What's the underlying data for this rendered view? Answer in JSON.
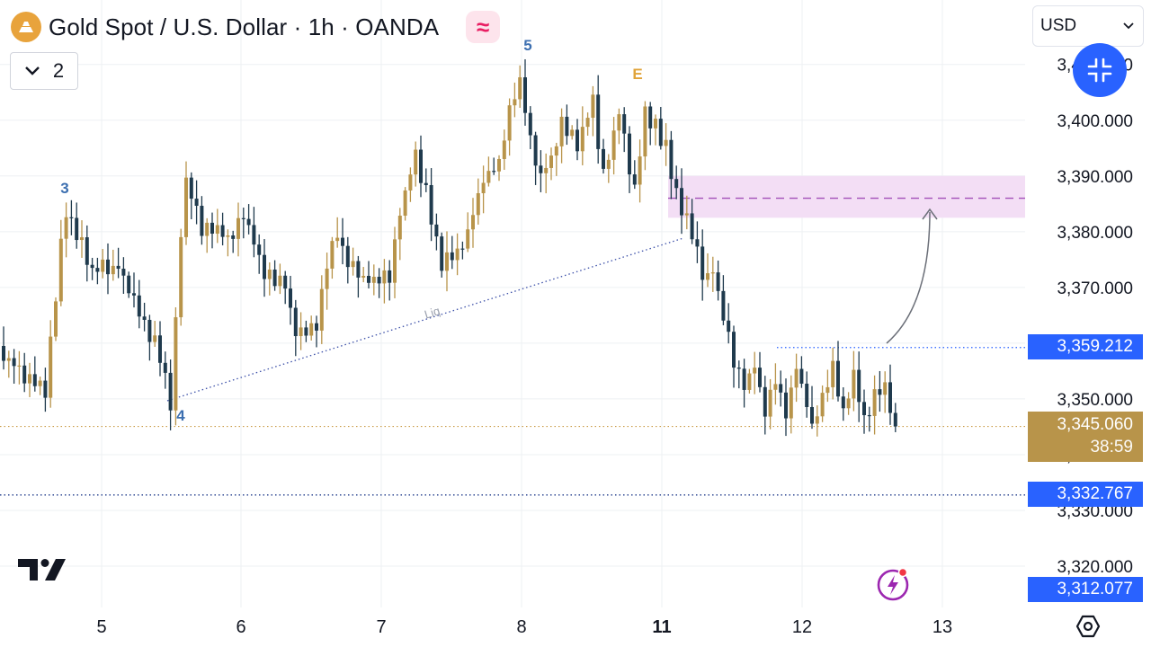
{
  "header": {
    "title": "Gold Spot / U.S. Dollar · 1h · OANDA",
    "indicator_glyph": "≈",
    "collapse_count": "2",
    "currency": "USD"
  },
  "colors": {
    "bull": "#b8944a",
    "bear": "#1f3a4d",
    "accent_blue": "#2962ff",
    "zone": "#f3def5",
    "zone_line": "#a24fb8",
    "wave_label": "#3c6fb0",
    "wave_e": "#e0a43a"
  },
  "icons": [
    "gold-logo-icon",
    "chevron-down-icon",
    "collapse-arrows-icon",
    "tradingview-logo-icon",
    "lightning-icon",
    "settings-hexagon-icon"
  ],
  "chart_data": {
    "type": "candlestick",
    "symbol": "XAUUSD",
    "timeframe": "1h",
    "x_ticks": [
      "5",
      "6",
      "7",
      "8",
      "11",
      "12",
      "13"
    ],
    "y_ticks": [
      "3,320.000",
      "3,330.000",
      "3,340.000",
      "3,350.000",
      "3,360.000",
      "3,370.000",
      "3,380.000",
      "3,390.000",
      "3,400.000",
      "3,410.000"
    ],
    "ylim": [
      3308,
      3420
    ],
    "price_labels": {
      "last_price": "3,345.060",
      "countdown": "38:59",
      "level_high": "3,359.212",
      "level_low": "3,332.767",
      "level_bottom": "3,312.077"
    },
    "wave_labels": [
      "3",
      "4",
      "5",
      "E"
    ],
    "trendline_label": "Liq",
    "zone": {
      "from": 3382.5,
      "to": 3390.0,
      "mid": 3386.0
    },
    "candle_waypoints": [
      [
        0,
        3358
      ],
      [
        8,
        3351
      ],
      [
        11,
        3378
      ],
      [
        12,
        3384
      ],
      [
        17,
        3373
      ],
      [
        22,
        3374
      ],
      [
        24,
        3370
      ],
      [
        30,
        3358
      ],
      [
        32,
        3349
      ],
      [
        34,
        3380
      ],
      [
        35,
        3389
      ],
      [
        38,
        3380
      ],
      [
        44,
        3379
      ],
      [
        46,
        3383
      ],
      [
        50,
        3373
      ],
      [
        54,
        3370
      ],
      [
        56,
        3362
      ],
      [
        60,
        3364
      ],
      [
        62,
        3375
      ],
      [
        64,
        3379
      ],
      [
        67,
        3373
      ],
      [
        70,
        3371
      ],
      [
        74,
        3372
      ],
      [
        76,
        3383
      ],
      [
        79,
        3394
      ],
      [
        82,
        3383
      ],
      [
        84,
        3374
      ],
      [
        86,
        3375
      ],
      [
        89,
        3380
      ],
      [
        92,
        3389
      ],
      [
        95,
        3393
      ],
      [
        97,
        3401
      ],
      [
        99,
        3407
      ],
      [
        101,
        3396
      ],
      [
        103,
        3390
      ],
      [
        105,
        3393
      ],
      [
        107,
        3400
      ],
      [
        110,
        3396
      ],
      [
        113,
        3403
      ],
      [
        115,
        3390
      ],
      [
        118,
        3402
      ],
      [
        121,
        3387
      ],
      [
        123,
        3401
      ],
      [
        125,
        3399
      ],
      [
        127,
        3395
      ],
      [
        130,
        3383
      ],
      [
        132,
        3380
      ],
      [
        134,
        3372
      ],
      [
        136,
        3373
      ],
      [
        138,
        3365
      ],
      [
        140,
        3357
      ],
      [
        142,
        3352
      ],
      [
        144,
        3356
      ],
      [
        146,
        3347
      ],
      [
        148,
        3353
      ],
      [
        150,
        3348
      ],
      [
        152,
        3356
      ],
      [
        155,
        3345
      ],
      [
        157,
        3350
      ],
      [
        159,
        3356
      ],
      [
        161,
        3348
      ],
      [
        163,
        3355
      ],
      [
        165,
        3346
      ],
      [
        167,
        3350
      ],
      [
        169,
        3352
      ],
      [
        171,
        3345.06
      ]
    ]
  }
}
